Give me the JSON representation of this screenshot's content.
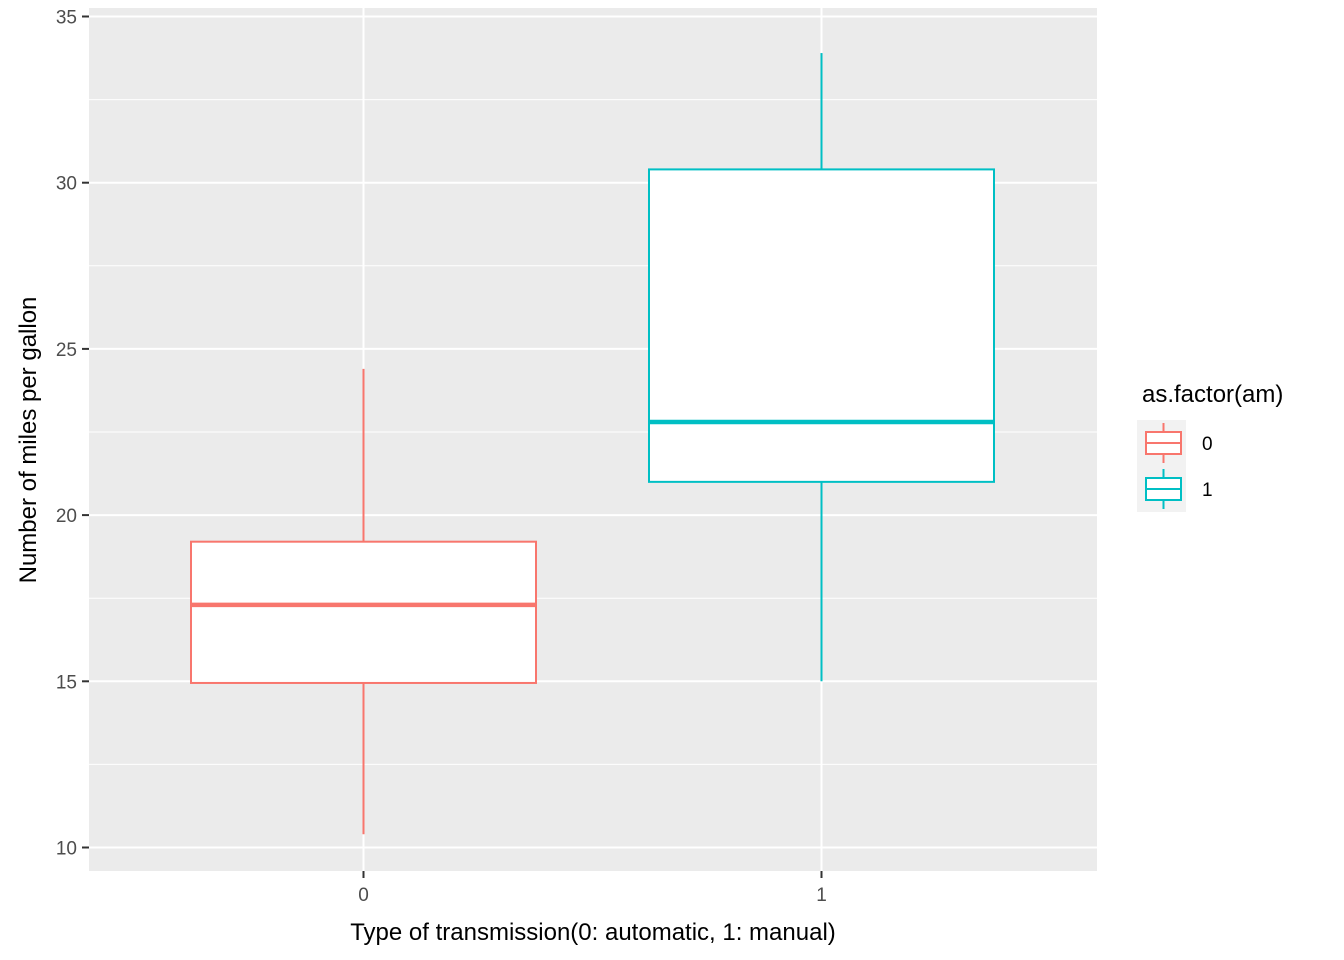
{
  "chart_data": {
    "type": "boxplot",
    "title": "",
    "xlabel": "Type of transmission(0: automatic, 1: manual)",
    "ylabel": "Number of miles per gallon",
    "categories": [
      "0",
      "1"
    ],
    "ylim": [
      9.2,
      35.1
    ],
    "yticks": [
      10,
      15,
      20,
      25,
      30,
      35
    ],
    "grid": true,
    "legend": {
      "title": "as.factor(am)",
      "position": "right",
      "entries": [
        "0",
        "1"
      ]
    },
    "series": [
      {
        "name": "0",
        "color": "#F8766D",
        "min": 10.4,
        "q1": 14.95,
        "median": 17.3,
        "q3": 19.2,
        "max": 24.4
      },
      {
        "name": "1",
        "color": "#00BFC4",
        "min": 15.0,
        "q1": 21.0,
        "median": 22.8,
        "q3": 30.4,
        "max": 33.9
      }
    ],
    "colors": {
      "panel_background": "#EBEBEB",
      "grid": "#FFFFFF",
      "box_fill": "#FFFFFF"
    }
  }
}
